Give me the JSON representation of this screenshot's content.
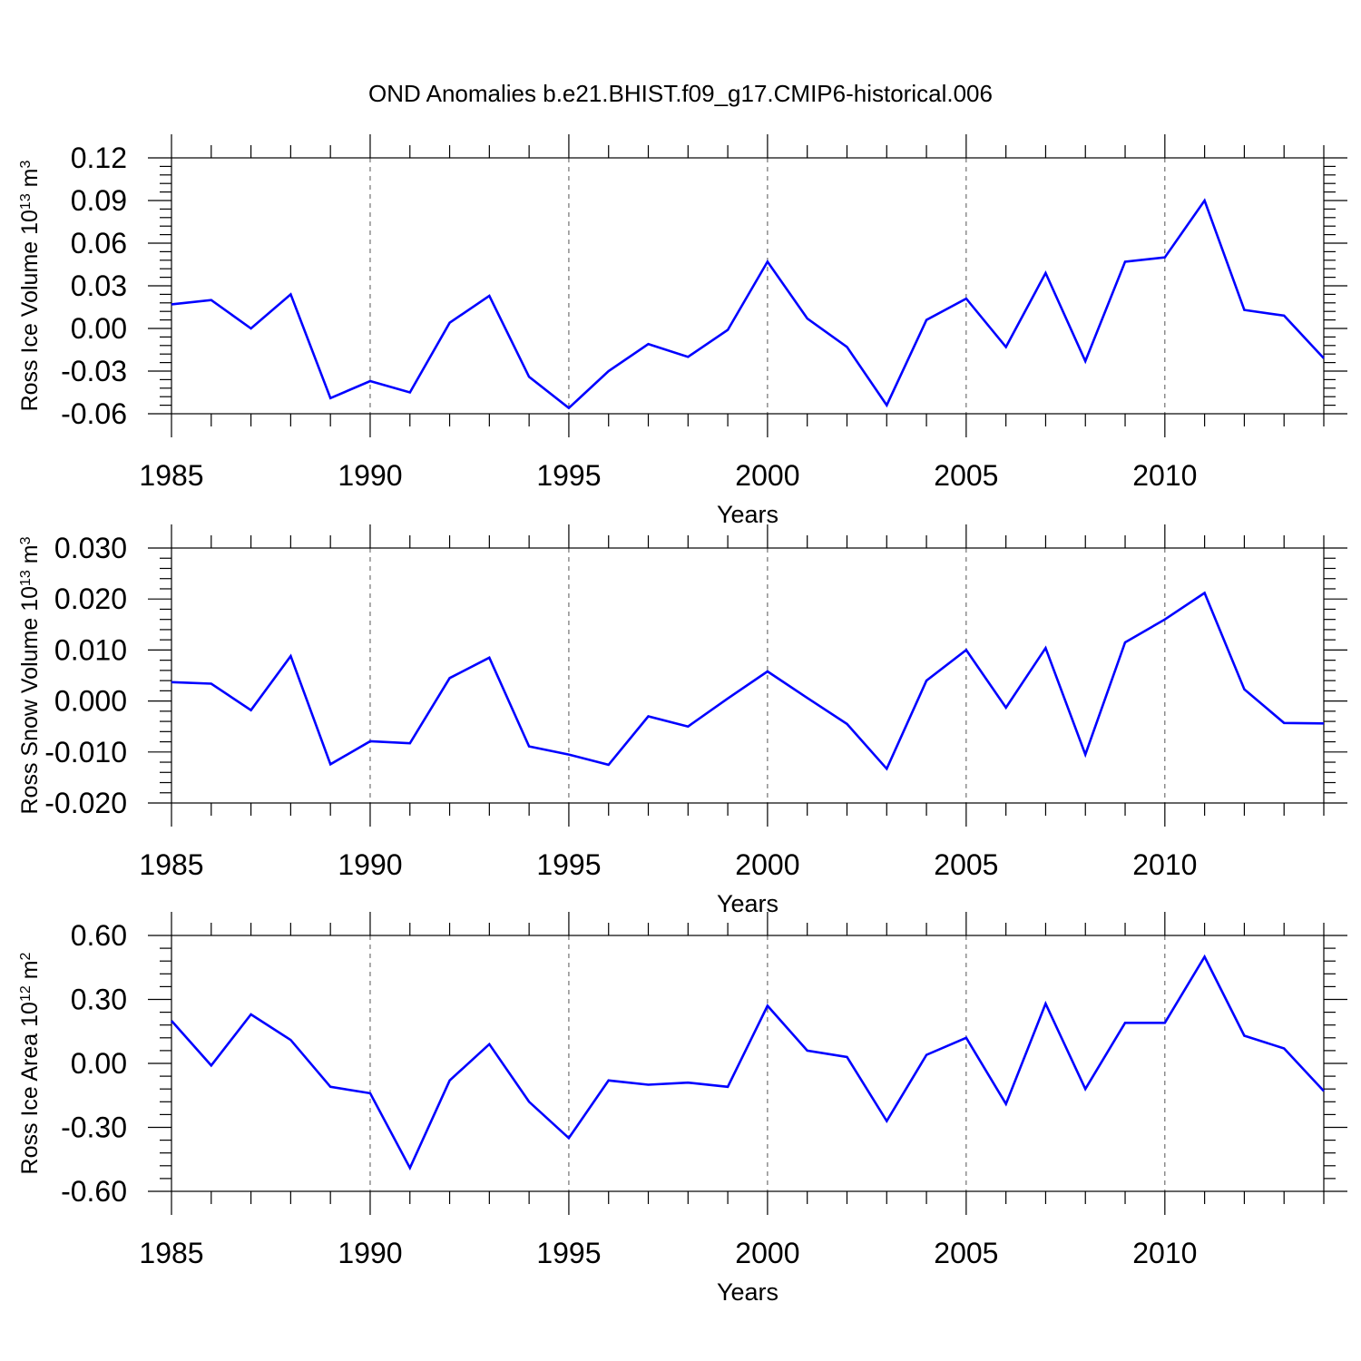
{
  "title": "OND Anomalies b.e21.BHIST.f09_g17.CMIP6-historical.006",
  "colors": {
    "series": "#0000ff",
    "axis": "#000000",
    "grid": "#555555"
  },
  "chart_data": [
    {
      "type": "line",
      "series_name": "Ross Ice Volume",
      "ylabel_main": "Ross Ice Volume 10",
      "ylabel_exp1": "13",
      "ylabel_unit": " m",
      "ylabel_exp2": "3",
      "xlabel": "Years",
      "xlim": [
        1985,
        2014
      ],
      "ylim": [
        -0.06,
        0.12
      ],
      "x_ticks": [
        1985,
        1990,
        1995,
        2000,
        2005,
        2010
      ],
      "x_tick_labels": [
        "1985",
        "1990",
        "1995",
        "2000",
        "2005",
        "2010"
      ],
      "y_ticks": [
        -0.06,
        -0.03,
        0.0,
        0.03,
        0.06,
        0.09,
        0.12
      ],
      "y_tick_labels": [
        "-0.06",
        "-0.03",
        "0.00",
        "0.03",
        "0.06",
        "0.09",
        "0.12"
      ],
      "y_minor_step": 0.006,
      "x": [
        1985,
        1986,
        1987,
        1988,
        1989,
        1990,
        1991,
        1992,
        1993,
        1994,
        1995,
        1996,
        1997,
        1998,
        1999,
        2000,
        2001,
        2002,
        2003,
        2004,
        2005,
        2006,
        2007,
        2008,
        2009,
        2010,
        2011,
        2012,
        2013,
        2014
      ],
      "values": [
        0.017,
        0.02,
        0.0,
        0.024,
        -0.049,
        -0.037,
        -0.045,
        0.004,
        0.023,
        -0.034,
        -0.056,
        -0.03,
        -0.011,
        -0.02,
        -0.001,
        0.047,
        0.007,
        -0.013,
        -0.054,
        0.006,
        0.021,
        -0.013,
        0.039,
        -0.023,
        0.047,
        0.05,
        0.09,
        0.013,
        0.009,
        -0.021
      ]
    },
    {
      "type": "line",
      "series_name": "Ross Snow Volume",
      "ylabel_main": "Ross Snow Volume 10",
      "ylabel_exp1": "13",
      "ylabel_unit": " m",
      "ylabel_exp2": "3",
      "xlabel": "Years",
      "xlim": [
        1985,
        2014
      ],
      "ylim": [
        -0.02,
        0.03
      ],
      "x_ticks": [
        1985,
        1990,
        1995,
        2000,
        2005,
        2010
      ],
      "x_tick_labels": [
        "1985",
        "1990",
        "1995",
        "2000",
        "2005",
        "2010"
      ],
      "y_ticks": [
        -0.02,
        -0.01,
        0.0,
        0.01,
        0.02,
        0.03
      ],
      "y_tick_labels": [
        "-0.020",
        "-0.010",
        "0.000",
        "0.010",
        "0.020",
        "0.030"
      ],
      "y_minor_step": 0.002,
      "x": [
        1985,
        1986,
        1987,
        1988,
        1989,
        1990,
        1991,
        1992,
        1993,
        1994,
        1995,
        1996,
        1997,
        1998,
        1999,
        2000,
        2001,
        2002,
        2003,
        2004,
        2005,
        2006,
        2007,
        2008,
        2009,
        2010,
        2011,
        2012,
        2013,
        2014
      ],
      "values": [
        0.0037,
        0.0034,
        -0.0018,
        0.0088,
        -0.0124,
        -0.0079,
        -0.0083,
        0.0045,
        0.0085,
        -0.0089,
        -0.0105,
        -0.0125,
        -0.003,
        -0.005,
        0.0005,
        0.0058,
        0.0006,
        -0.0045,
        -0.0133,
        0.004,
        0.01,
        -0.0013,
        0.0104,
        -0.0105,
        0.0115,
        0.016,
        0.0212,
        0.0023,
        -0.0043,
        -0.0044
      ]
    },
    {
      "type": "line",
      "series_name": "Ross Ice Area",
      "ylabel_main": "Ross Ice Area 10",
      "ylabel_exp1": "12",
      "ylabel_unit": " m",
      "ylabel_exp2": "2",
      "xlabel": "Years",
      "xlim": [
        1985,
        2014
      ],
      "ylim": [
        -0.6,
        0.6
      ],
      "x_ticks": [
        1985,
        1990,
        1995,
        2000,
        2005,
        2010
      ],
      "x_tick_labels": [
        "1985",
        "1990",
        "1995",
        "2000",
        "2005",
        "2010"
      ],
      "y_ticks": [
        -0.6,
        -0.3,
        0.0,
        0.3,
        0.6
      ],
      "y_tick_labels": [
        "-0.60",
        "-0.30",
        "0.00",
        "0.30",
        "0.60"
      ],
      "y_minor_step": 0.06,
      "x": [
        1985,
        1986,
        1987,
        1988,
        1989,
        1990,
        1991,
        1992,
        1993,
        1994,
        1995,
        1996,
        1997,
        1998,
        1999,
        2000,
        2001,
        2002,
        2003,
        2004,
        2005,
        2006,
        2007,
        2008,
        2009,
        2010,
        2011,
        2012,
        2013,
        2014
      ],
      "values": [
        0.2,
        -0.01,
        0.23,
        0.11,
        -0.11,
        -0.14,
        -0.49,
        -0.08,
        0.09,
        -0.18,
        -0.35,
        -0.08,
        -0.1,
        -0.09,
        -0.11,
        0.27,
        0.06,
        0.03,
        -0.27,
        0.04,
        0.12,
        -0.19,
        0.28,
        -0.12,
        0.19,
        0.19,
        0.5,
        0.13,
        0.07,
        -0.13
      ]
    }
  ]
}
